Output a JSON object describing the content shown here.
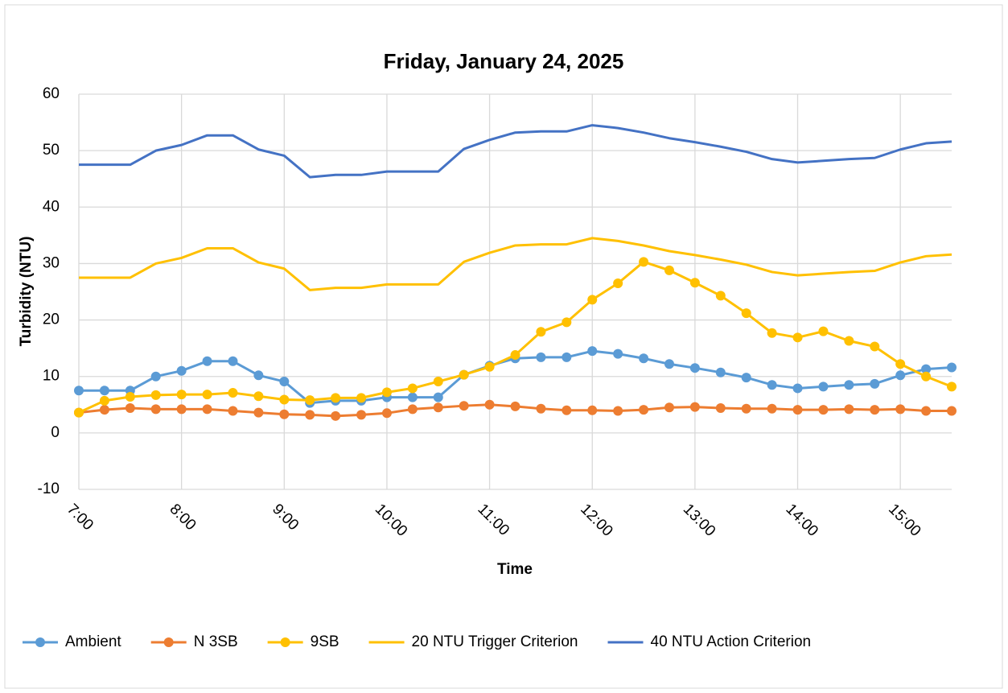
{
  "chart_data": {
    "type": "line",
    "title": "Friday, January 24, 2025",
    "x_label": "Time",
    "y_label": "Turbidity (NTU)",
    "x": [
      7,
      7.25,
      7.5,
      7.75,
      8,
      8.25,
      8.5,
      8.75,
      9,
      9.25,
      9.5,
      9.75,
      10,
      10.25,
      10.5,
      10.75,
      11,
      11.25,
      11.5,
      11.75,
      12,
      12.25,
      12.5,
      12.75,
      13,
      13.25,
      13.5,
      13.75,
      14,
      14.25,
      14.5,
      14.75,
      15,
      15.25,
      15.5
    ],
    "xlim": [
      7,
      15.5
    ],
    "xticks": [
      {
        "value": 7,
        "label": "7:00"
      },
      {
        "value": 8,
        "label": "8:00"
      },
      {
        "value": 9,
        "label": "9:00"
      },
      {
        "value": 10,
        "label": "10:00"
      },
      {
        "value": 11,
        "label": "11:00"
      },
      {
        "value": 12,
        "label": "12:00"
      },
      {
        "value": 13,
        "label": "13:00"
      },
      {
        "value": 14,
        "label": "14:00"
      },
      {
        "value": 15,
        "label": "15:00"
      }
    ],
    "ylim": [
      -10,
      60
    ],
    "yticks": [
      -10,
      0,
      10,
      20,
      30,
      40,
      50,
      60
    ],
    "grid": true,
    "legend": "bottom",
    "series": [
      {
        "name": "Ambient",
        "color": "#5b9bd5",
        "markers": true,
        "values": [
          7.5,
          7.5,
          7.5,
          10,
          11,
          12.7,
          12.7,
          10.2,
          9.1,
          5.3,
          5.7,
          5.7,
          6.3,
          6.3,
          6.3,
          10.3,
          11.9,
          13.2,
          13.4,
          13.4,
          14.5,
          14,
          13.2,
          12.2,
          11.5,
          10.7,
          9.8,
          8.5,
          7.9,
          8.2,
          8.5,
          8.7,
          10.2,
          11.3,
          11.6
        ]
      },
      {
        "name": "N 3SB",
        "color": "#ed7d31",
        "markers": true,
        "values": [
          3.6,
          4.1,
          4.4,
          4.2,
          4.2,
          4.2,
          3.9,
          3.6,
          3.3,
          3.2,
          3.0,
          3.2,
          3.5,
          4.2,
          4.5,
          4.8,
          5.0,
          4.7,
          4.3,
          4.0,
          4.0,
          3.9,
          4.1,
          4.5,
          4.6,
          4.4,
          4.3,
          4.3,
          4.1,
          4.1,
          4.2,
          4.1,
          4.2,
          3.9,
          3.9
        ]
      },
      {
        "name": "9SB",
        "color": "#ffc000",
        "markers": true,
        "values": [
          3.6,
          5.7,
          6.4,
          6.7,
          6.8,
          6.8,
          7.1,
          6.5,
          5.9,
          5.8,
          6.2,
          6.2,
          7.2,
          7.9,
          9.1,
          10.3,
          11.7,
          13.8,
          17.9,
          19.6,
          23.6,
          26.5,
          30.3,
          28.8,
          26.6,
          24.3,
          21.2,
          17.7,
          16.9,
          18.0,
          16.3,
          15.3,
          12.2,
          10.0,
          8.2
        ]
      },
      {
        "name": "20 NTU Trigger Criterion",
        "color": "#ffc000",
        "markers": false,
        "values": [
          27.5,
          27.5,
          27.5,
          30,
          31,
          32.7,
          32.7,
          30.2,
          29.1,
          25.3,
          25.7,
          25.7,
          26.3,
          26.3,
          26.3,
          30.3,
          31.9,
          33.2,
          33.4,
          33.4,
          34.5,
          34,
          33.2,
          32.2,
          31.5,
          30.7,
          29.8,
          28.5,
          27.9,
          28.2,
          28.5,
          28.7,
          30.2,
          31.3,
          31.6
        ]
      },
      {
        "name": "40 NTU Action Criterion",
        "color": "#4472c4",
        "markers": false,
        "values": [
          47.5,
          47.5,
          47.5,
          50,
          51,
          52.7,
          52.7,
          50.2,
          49.1,
          45.3,
          45.7,
          45.7,
          46.3,
          46.3,
          46.3,
          50.3,
          51.9,
          53.2,
          53.4,
          53.4,
          54.5,
          54,
          53.2,
          52.2,
          51.5,
          50.7,
          49.8,
          48.5,
          47.9,
          48.2,
          48.5,
          48.7,
          50.2,
          51.3,
          51.6
        ]
      }
    ]
  }
}
